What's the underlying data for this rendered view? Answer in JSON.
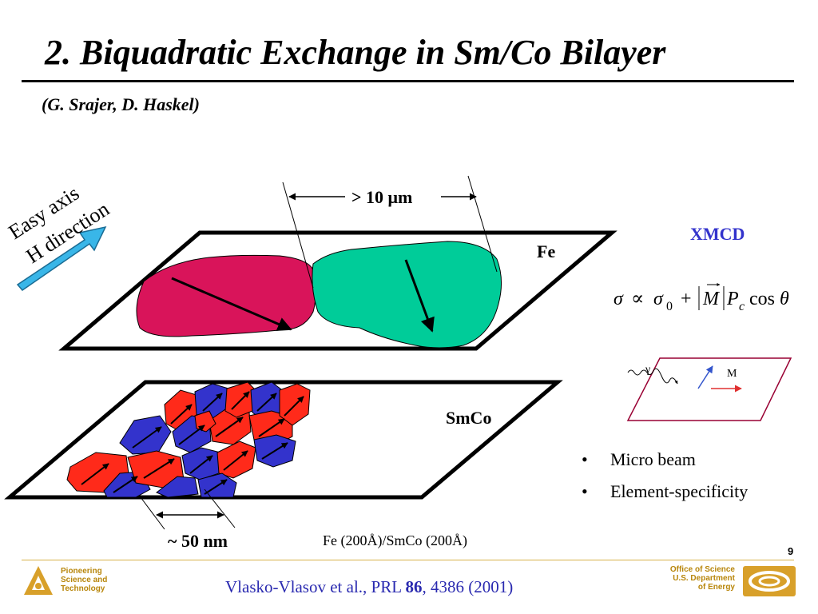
{
  "slide": {
    "title": "2. Biquadratic Exchange in Sm/Co Bilayer",
    "authors": "(G. Srajer, D. Haskel)",
    "page_number": "9"
  },
  "diagram": {
    "easy_axis_line1": "Easy axis",
    "easy_axis_line2": "H direction",
    "width_label_prefix": "> 10 ",
    "width_label_unit": "μm",
    "fe_label": "Fe",
    "smco_label": "SmCo",
    "grain_size_label": "~ 50 nm",
    "sample_label": "Fe (200Å)/SmCo (200Å)",
    "colors": {
      "fe_domain_left": "#d9145a",
      "fe_domain_right": "#00cc99",
      "grain_red": "#ff2a1a",
      "grain_blue": "#3333cc",
      "arrow_cyan": "#39b6e8"
    }
  },
  "xmcd": {
    "heading": "XMCD",
    "formula": {
      "sigma": "σ",
      "propto": "∝",
      "sigma0": "σ",
      "sub0": "0",
      "plus": "+",
      "M": "M",
      "P": "P",
      "subc": "c",
      "cos": "cos",
      "theta": "θ"
    },
    "gamma_label": "γ",
    "m_label": "M",
    "colors": {
      "heading": "#3333cc",
      "plane": "#990033",
      "m_arrow": "#e03030",
      "gamma_arrow": "#3355cc"
    }
  },
  "bullets": [
    "Micro beam",
    "Element-specificity"
  ],
  "footer": {
    "pst_line1": "Pioneering",
    "pst_line2": "Science and",
    "pst_line3": "Technology",
    "citation_prefix": "Vlasko-Vlasov et al., PRL ",
    "citation_volume": "86",
    "citation_suffix": ", 4386 (2001)",
    "doe_line1": "Office of Science",
    "doe_line2": "U.S. Department",
    "doe_line3": "of Energy"
  }
}
